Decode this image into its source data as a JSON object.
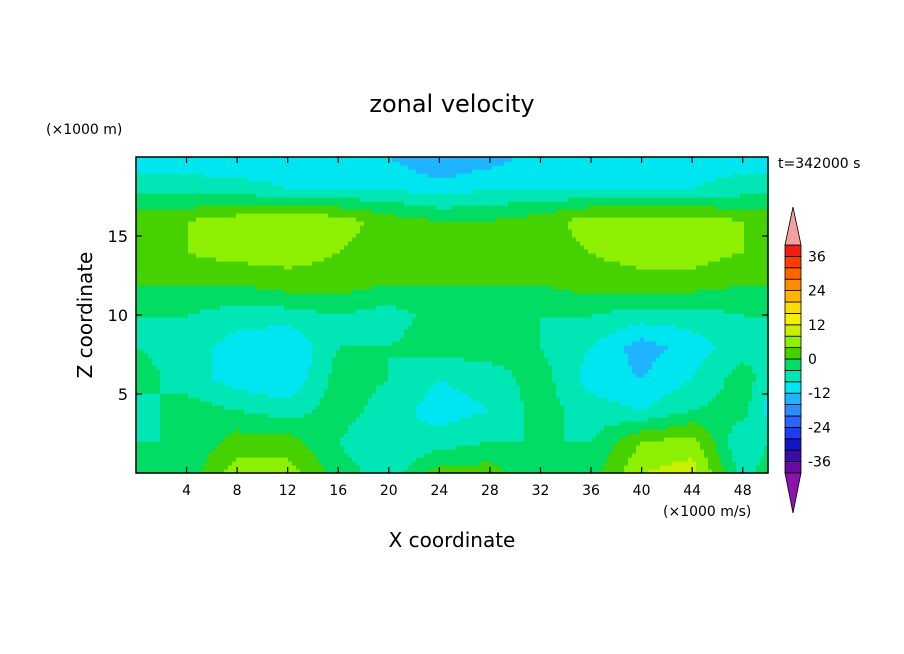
{
  "chart_data": {
    "type": "heatmap",
    "title": "zonal velocity",
    "xlabel": "X coordinate",
    "ylabel": "Z coordinate",
    "x_scale_label": "(×1000 m/s)",
    "y_scale_label": "(×1000 m)",
    "time_label": "t=342000 s",
    "xlim": [
      0,
      50
    ],
    "ylim": [
      0,
      20
    ],
    "x_ticks": [
      4,
      8,
      12,
      16,
      20,
      24,
      28,
      32,
      36,
      40,
      44,
      48
    ],
    "y_ticks": [
      5,
      10,
      15
    ],
    "colorbar": {
      "levels": [
        -40,
        -36,
        -32,
        -28,
        -24,
        -20,
        -16,
        -12,
        -8,
        -4,
        0,
        4,
        8,
        12,
        16,
        20,
        24,
        28,
        32,
        36,
        40
      ],
      "colors": [
        "#6a0aa0",
        "#3a0ca8",
        "#1414c8",
        "#1e3cf0",
        "#2a64ff",
        "#2a8cff",
        "#1eb4ff",
        "#00e6f0",
        "#00e6b4",
        "#00dc64",
        "#46d200",
        "#8cf000",
        "#c8f000",
        "#f0f000",
        "#ffdc00",
        "#ffb400",
        "#ff8c00",
        "#ff6400",
        "#ff3c00",
        "#f01e14"
      ],
      "under_color": "#8c14a8",
      "over_color": "#f4a0a0",
      "tick_labels": [
        "36",
        "24",
        "12",
        "0",
        "-12",
        "-24",
        "-36"
      ],
      "tick_values": [
        36,
        24,
        12,
        0,
        -12,
        -24,
        -36
      ]
    },
    "field_grid": {
      "x": [
        0,
        4,
        8,
        12,
        16,
        20,
        24,
        28,
        32,
        36,
        40,
        44,
        48,
        50
      ],
      "z": [
        0,
        2,
        4,
        6,
        8,
        10,
        12,
        14,
        16,
        18,
        20
      ],
      "values_by_z": [
        [
          -2,
          -2,
          6,
          6,
          -2,
          -6,
          2,
          2,
          -4,
          -2,
          8,
          10,
          -6,
          -2
        ],
        [
          -4,
          -4,
          2,
          2,
          -4,
          -8,
          -6,
          -4,
          -4,
          -4,
          4,
          6,
          -8,
          -4
        ],
        [
          -6,
          -2,
          -4,
          -6,
          -2,
          -6,
          -10,
          -8,
          -2,
          -6,
          -8,
          -4,
          -2,
          -10
        ],
        [
          -2,
          -6,
          -10,
          -12,
          -2,
          -4,
          -8,
          -6,
          -2,
          -10,
          -12,
          -8,
          -2,
          -6
        ],
        [
          -4,
          -6,
          -10,
          -12,
          -4,
          -4,
          -2,
          -2,
          -4,
          -8,
          -14,
          -10,
          -6,
          -4
        ],
        [
          -4,
          -4,
          -6,
          -6,
          -4,
          -6,
          -2,
          -2,
          -4,
          -4,
          -6,
          -6,
          -4,
          -4
        ],
        [
          0,
          0,
          0,
          2,
          2,
          0,
          0,
          0,
          0,
          2,
          2,
          2,
          0,
          0
        ],
        [
          2,
          4,
          6,
          6,
          4,
          2,
          0,
          0,
          2,
          4,
          6,
          6,
          4,
          2
        ],
        [
          4,
          4,
          6,
          8,
          6,
          2,
          0,
          0,
          2,
          6,
          6,
          6,
          4,
          4
        ],
        [
          -6,
          -6,
          -6,
          -8,
          -8,
          -8,
          -10,
          -8,
          -8,
          -8,
          -8,
          -8,
          -6,
          -6
        ],
        [
          -10,
          -10,
          -12,
          -10,
          -10,
          -12,
          -16,
          -14,
          -10,
          -10,
          -10,
          -10,
          -10,
          -10
        ]
      ]
    }
  }
}
